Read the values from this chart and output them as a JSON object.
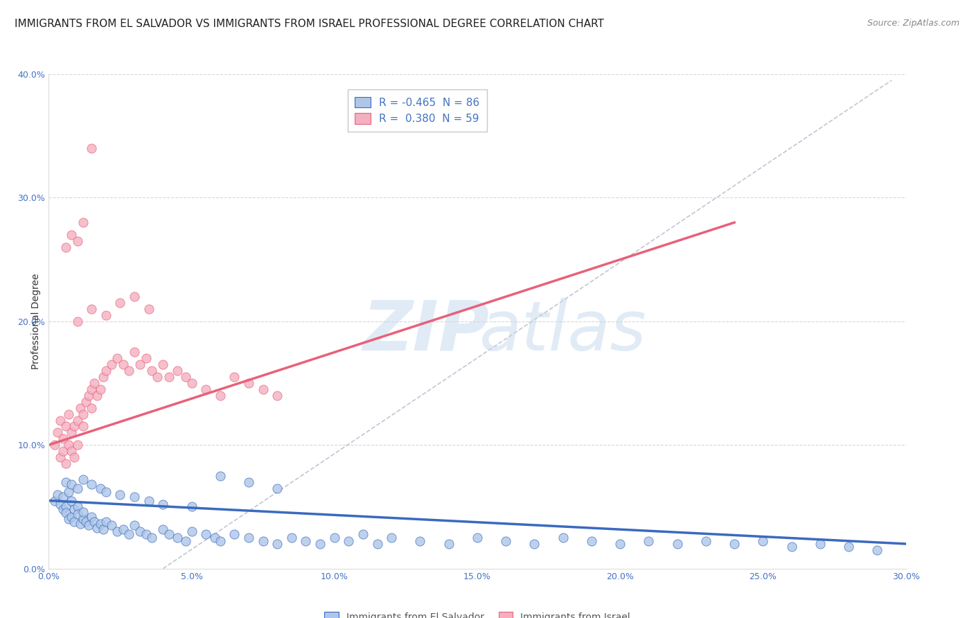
{
  "title": "IMMIGRANTS FROM EL SALVADOR VS IMMIGRANTS FROM ISRAEL PROFESSIONAL DEGREE CORRELATION CHART",
  "source": "Source: ZipAtlas.com",
  "ylabel": "Professional Degree",
  "xlim": [
    0.0,
    0.3
  ],
  "ylim": [
    0.0,
    0.4
  ],
  "legend_R_blue": "-0.465",
  "legend_N_blue": "86",
  "legend_R_pink": "0.380",
  "legend_N_pink": "59",
  "blue_color": "#aec6e8",
  "pink_color": "#f4afc0",
  "blue_line_color": "#3a6abf",
  "pink_line_color": "#e8607a",
  "blue_trend_x": [
    0.0,
    0.3
  ],
  "blue_trend_y": [
    0.055,
    0.02
  ],
  "pink_trend_x": [
    0.0,
    0.24
  ],
  "pink_trend_y": [
    0.1,
    0.28
  ],
  "dash_line_x": [
    0.04,
    0.295
  ],
  "dash_line_y": [
    0.0,
    0.395
  ],
  "watermark_zip": "ZIP",
  "watermark_atlas": "atlas",
  "background_color": "#ffffff",
  "grid_color": "#cccccc",
  "title_fontsize": 11,
  "axis_tick_fontsize": 9,
  "blue_scatter_x": [
    0.002,
    0.003,
    0.004,
    0.005,
    0.005,
    0.006,
    0.006,
    0.007,
    0.007,
    0.008,
    0.008,
    0.009,
    0.009,
    0.01,
    0.01,
    0.011,
    0.012,
    0.012,
    0.013,
    0.014,
    0.015,
    0.016,
    0.017,
    0.018,
    0.019,
    0.02,
    0.022,
    0.024,
    0.026,
    0.028,
    0.03,
    0.032,
    0.034,
    0.036,
    0.04,
    0.042,
    0.045,
    0.048,
    0.05,
    0.055,
    0.058,
    0.06,
    0.065,
    0.07,
    0.075,
    0.08,
    0.085,
    0.09,
    0.095,
    0.1,
    0.105,
    0.11,
    0.115,
    0.12,
    0.13,
    0.14,
    0.15,
    0.16,
    0.17,
    0.18,
    0.19,
    0.2,
    0.21,
    0.22,
    0.23,
    0.24,
    0.25,
    0.26,
    0.27,
    0.28,
    0.29,
    0.006,
    0.008,
    0.01,
    0.012,
    0.015,
    0.018,
    0.02,
    0.025,
    0.03,
    0.035,
    0.04,
    0.05,
    0.06,
    0.07,
    0.08
  ],
  "blue_scatter_y": [
    0.055,
    0.06,
    0.052,
    0.058,
    0.048,
    0.05,
    0.045,
    0.062,
    0.04,
    0.055,
    0.042,
    0.048,
    0.038,
    0.05,
    0.044,
    0.036,
    0.04,
    0.046,
    0.038,
    0.035,
    0.042,
    0.038,
    0.033,
    0.036,
    0.032,
    0.038,
    0.035,
    0.03,
    0.032,
    0.028,
    0.035,
    0.03,
    0.028,
    0.025,
    0.032,
    0.028,
    0.025,
    0.022,
    0.03,
    0.028,
    0.025,
    0.022,
    0.028,
    0.025,
    0.022,
    0.02,
    0.025,
    0.022,
    0.02,
    0.025,
    0.022,
    0.028,
    0.02,
    0.025,
    0.022,
    0.02,
    0.025,
    0.022,
    0.02,
    0.025,
    0.022,
    0.02,
    0.022,
    0.02,
    0.022,
    0.02,
    0.022,
    0.018,
    0.02,
    0.018,
    0.015,
    0.07,
    0.068,
    0.065,
    0.072,
    0.068,
    0.065,
    0.062,
    0.06,
    0.058,
    0.055,
    0.052,
    0.05,
    0.075,
    0.07,
    0.065
  ],
  "pink_scatter_x": [
    0.002,
    0.003,
    0.004,
    0.004,
    0.005,
    0.005,
    0.006,
    0.006,
    0.007,
    0.007,
    0.008,
    0.008,
    0.009,
    0.009,
    0.01,
    0.01,
    0.011,
    0.012,
    0.012,
    0.013,
    0.014,
    0.015,
    0.015,
    0.016,
    0.017,
    0.018,
    0.019,
    0.02,
    0.022,
    0.024,
    0.026,
    0.028,
    0.03,
    0.032,
    0.034,
    0.036,
    0.038,
    0.04,
    0.042,
    0.045,
    0.048,
    0.05,
    0.055,
    0.06,
    0.065,
    0.07,
    0.075,
    0.08,
    0.01,
    0.015,
    0.02,
    0.025,
    0.03,
    0.035,
    0.006,
    0.008,
    0.01,
    0.012,
    0.015
  ],
  "pink_scatter_y": [
    0.1,
    0.11,
    0.09,
    0.12,
    0.095,
    0.105,
    0.115,
    0.085,
    0.125,
    0.1,
    0.11,
    0.095,
    0.115,
    0.09,
    0.12,
    0.1,
    0.13,
    0.125,
    0.115,
    0.135,
    0.14,
    0.13,
    0.145,
    0.15,
    0.14,
    0.145,
    0.155,
    0.16,
    0.165,
    0.17,
    0.165,
    0.16,
    0.175,
    0.165,
    0.17,
    0.16,
    0.155,
    0.165,
    0.155,
    0.16,
    0.155,
    0.15,
    0.145,
    0.14,
    0.155,
    0.15,
    0.145,
    0.14,
    0.2,
    0.21,
    0.205,
    0.215,
    0.22,
    0.21,
    0.26,
    0.27,
    0.265,
    0.28,
    0.34
  ]
}
